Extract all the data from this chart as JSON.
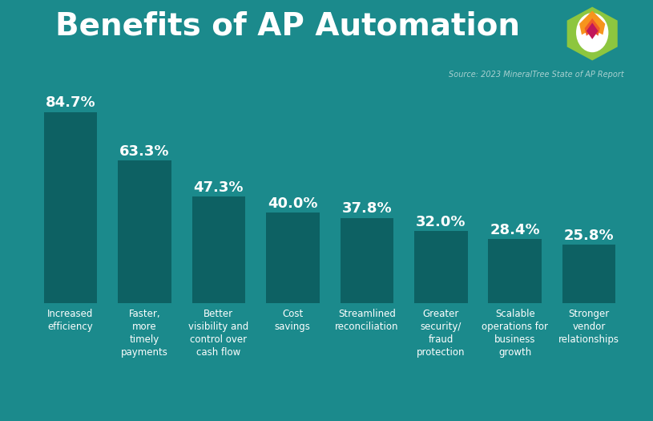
{
  "title": "Benefits of AP Automation",
  "source": "Source: 2023 MineralTree State of AP Report",
  "categories": [
    "Increased\nefficiency",
    "Faster,\nmore\ntimely\npayments",
    "Better\nvisibility and\ncontrol over\ncash flow",
    "Cost\nsavings",
    "Streamlined\nreconciliation",
    "Greater\nsecurity/\nfraud\nprotection",
    "Scalable\noperations for\nbusiness\ngrowth",
    "Stronger\nvendor\nrelationships"
  ],
  "values": [
    84.7,
    63.3,
    47.3,
    40.0,
    37.8,
    32.0,
    28.4,
    25.8
  ],
  "bar_color": "#0d6163",
  "bg_color": "#1b8a8c",
  "source_strip_color": "#136869",
  "title_color": "#ffffff",
  "value_label_color": "#ffffff",
  "xlabel_color": "#ffffff",
  "source_color": "#a8d0d0",
  "ylim": [
    0,
    97
  ],
  "title_fontsize": 28,
  "value_fontsize": 13,
  "xlabel_fontsize": 8.5,
  "source_fontsize": 7,
  "bar_width": 0.72
}
